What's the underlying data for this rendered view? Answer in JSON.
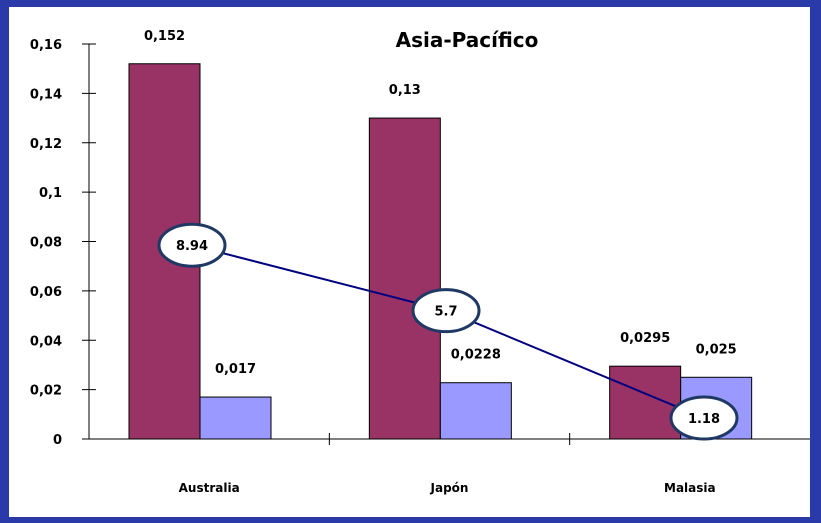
{
  "colors": {
    "frame": "#2a3aa8",
    "background": "#ffffff",
    "series1": "#993366",
    "series2": "#9999ff",
    "line": "#000080",
    "bubble_border": "#1f3864"
  },
  "chart_data": {
    "type": "bar",
    "title": "Asia-Pacífico",
    "categories": [
      "Australia",
      "Japón",
      "Malasia"
    ],
    "ylim": [
      0,
      0.16
    ],
    "y_ticks": [
      "0",
      "0,02",
      "0,04",
      "0,06",
      "0,08",
      "0,1",
      "0,12",
      "0,14",
      "0,16"
    ],
    "series": [
      {
        "values": [
          0.152,
          0.13,
          0.0295
        ],
        "labels": [
          "0,152",
          "0,13",
          "0,0295"
        ]
      },
      {
        "values": [
          0.017,
          0.0228,
          0.025
        ],
        "labels": [
          "0,017",
          "0,0228",
          "0,025"
        ]
      }
    ],
    "overlay_line": {
      "values": [
        8.94,
        5.7,
        1.18
      ],
      "labels": [
        "8.94",
        "5.7",
        "1.18"
      ],
      "y_positions": [
        0.0785,
        0.052,
        0.0085
      ]
    },
    "grid": false,
    "legend": "none"
  }
}
